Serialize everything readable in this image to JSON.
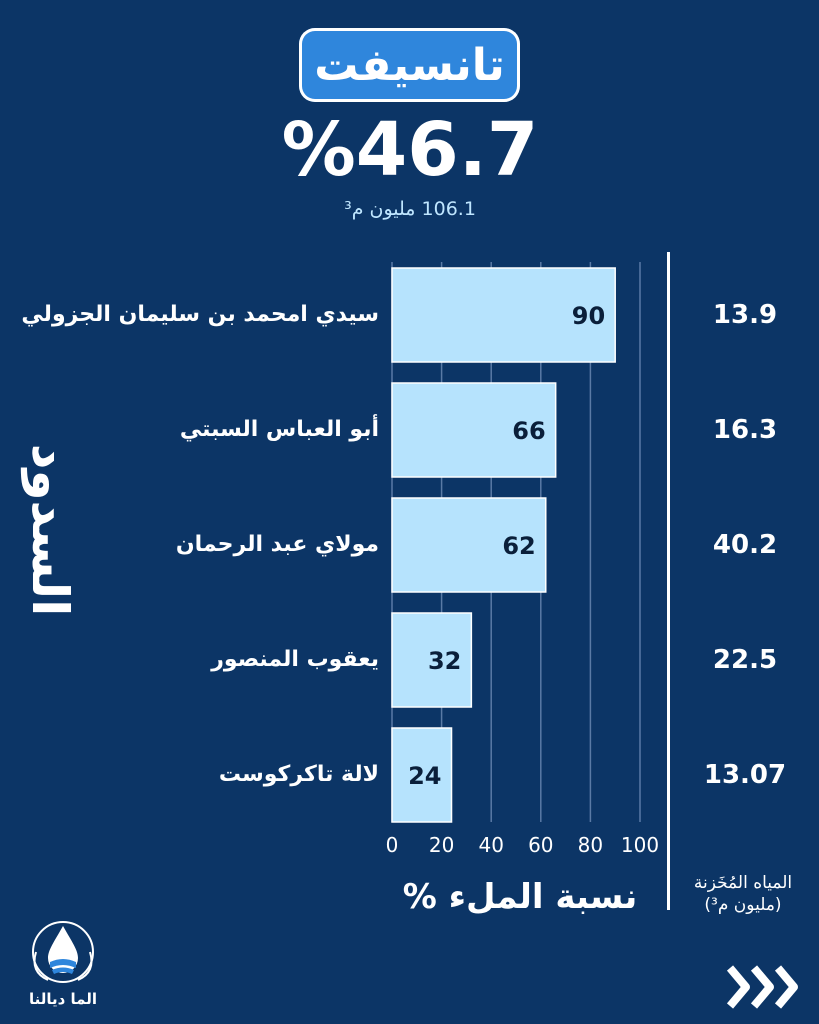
{
  "header": {
    "region": "تانسيفت",
    "total_fill_percent": "%46.7",
    "total_stored": "106.1 مليون م³"
  },
  "side_title": "السدود",
  "stored_column_label_line1": "المياه المُخَزنة",
  "stored_column_label_line2": "(مليون م³)",
  "chart_data": {
    "type": "bar",
    "orientation": "horizontal",
    "categories": [
      "سيدي امحمد بن سليمان الجزولي",
      "أبو العباس السبتي",
      "مولاي عبد الرحمان",
      "يعقوب المنصور",
      "لالة تاكركوست"
    ],
    "values": [
      90,
      66,
      62,
      32,
      24
    ],
    "stored_volume": [
      "13.9",
      "16.3",
      "40.2",
      "22.5",
      "13.07"
    ],
    "xlabel": "نسبة الملء %",
    "xlim": [
      0,
      100
    ],
    "x_ticks": [
      "0",
      "20",
      "40",
      "60",
      "80",
      "100"
    ],
    "bar_color": "#b6e3fd",
    "grid": true,
    "axis_side": "right"
  },
  "logo_text": "الما ديالنا",
  "colors": {
    "background": "#0c3566",
    "badge": "#2f86dc",
    "bar": "#b6e3fd"
  },
  "nav": {
    "next_icon": "triple-chevron-right-icon"
  }
}
